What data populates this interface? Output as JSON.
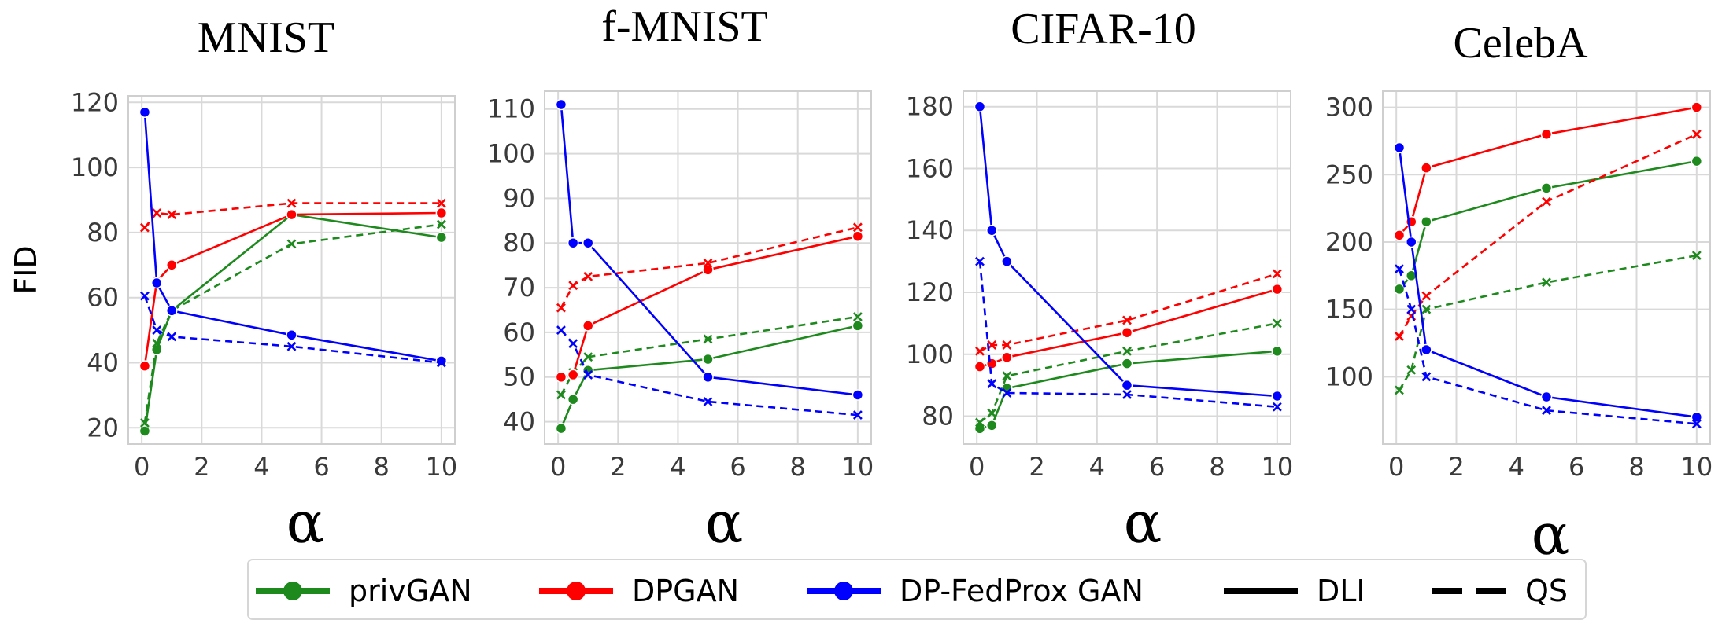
{
  "legend": {
    "items": [
      {
        "label": "privGAN",
        "kind": "color",
        "color": "#1e8a1e"
      },
      {
        "label": "DPGAN",
        "kind": "color",
        "color": "#ff0000"
      },
      {
        "label": "DP-FedProx GAN",
        "kind": "color",
        "color": "#0000ff"
      },
      {
        "label": "DLI",
        "kind": "style",
        "color": "#000000",
        "dashed": false
      },
      {
        "label": "QS",
        "kind": "style",
        "color": "#000000",
        "dashed": true
      }
    ]
  },
  "chart_data": [
    {
      "type": "line",
      "title": "MNIST",
      "xlabel": "α",
      "ylabel": "FID",
      "xlim": [
        -0.45,
        10.45
      ],
      "ylim": [
        15,
        122
      ],
      "xticks": [
        0,
        2,
        4,
        6,
        8,
        10
      ],
      "yticks": [
        20,
        40,
        60,
        80,
        100,
        120
      ],
      "grid": true,
      "x": [
        0.1,
        0.5,
        1,
        5,
        10
      ],
      "series": [
        {
          "name": "privGAN",
          "method": "DLI",
          "color": "#1e8a1e",
          "dashed": false,
          "values": [
            19,
            44,
            56,
            85.5,
            78.5
          ]
        },
        {
          "name": "privGAN",
          "method": "QS",
          "color": "#1e8a1e",
          "dashed": true,
          "values": [
            21.5,
            46,
            56,
            76.5,
            82.5
          ]
        },
        {
          "name": "DPGAN",
          "method": "DLI",
          "color": "#ff0000",
          "dashed": false,
          "values": [
            39,
            65,
            70,
            85.5,
            86
          ]
        },
        {
          "name": "DPGAN",
          "method": "QS",
          "color": "#ff0000",
          "dashed": true,
          "values": [
            81.5,
            86,
            85.5,
            89,
            89
          ]
        },
        {
          "name": "DP-FedProx GAN",
          "method": "DLI",
          "color": "#0000ff",
          "dashed": false,
          "values": [
            117,
            64.5,
            56,
            48.5,
            40.5
          ]
        },
        {
          "name": "DP-FedProx GAN",
          "method": "QS",
          "color": "#0000ff",
          "dashed": true,
          "values": [
            60.5,
            50,
            48,
            45,
            40
          ]
        }
      ]
    },
    {
      "type": "line",
      "title": "f-MNIST",
      "xlabel": "α",
      "ylabel": "",
      "xlim": [
        -0.45,
        10.45
      ],
      "ylim": [
        35,
        114
      ],
      "xticks": [
        0,
        2,
        4,
        6,
        8,
        10
      ],
      "yticks": [
        40,
        50,
        60,
        70,
        80,
        90,
        100,
        110
      ],
      "grid": true,
      "x": [
        0.1,
        0.5,
        1,
        5,
        10
      ],
      "series": [
        {
          "name": "privGAN",
          "method": "DLI",
          "color": "#1e8a1e",
          "dashed": false,
          "values": [
            38.5,
            45,
            51.5,
            54,
            61.5
          ]
        },
        {
          "name": "privGAN",
          "method": "QS",
          "color": "#1e8a1e",
          "dashed": true,
          "values": [
            46,
            51,
            54.5,
            58.5,
            63.5
          ]
        },
        {
          "name": "DPGAN",
          "method": "DLI",
          "color": "#ff0000",
          "dashed": false,
          "values": [
            50,
            50.5,
            61.5,
            74,
            81.5
          ]
        },
        {
          "name": "DPGAN",
          "method": "QS",
          "color": "#ff0000",
          "dashed": true,
          "values": [
            65.5,
            70.5,
            72.5,
            75.5,
            83.5
          ]
        },
        {
          "name": "DP-FedProx GAN",
          "method": "DLI",
          "color": "#0000ff",
          "dashed": false,
          "values": [
            111,
            80,
            80,
            50,
            46
          ]
        },
        {
          "name": "DP-FedProx GAN",
          "method": "QS",
          "color": "#0000ff",
          "dashed": true,
          "values": [
            60.5,
            57.5,
            50.5,
            44.5,
            41.5
          ]
        }
      ]
    },
    {
      "type": "line",
      "title": "CIFAR-10",
      "xlabel": "α",
      "ylabel": "",
      "xlim": [
        -0.45,
        10.45
      ],
      "ylim": [
        71,
        185
      ],
      "xticks": [
        0,
        2,
        4,
        6,
        8,
        10
      ],
      "yticks": [
        80,
        100,
        120,
        140,
        160,
        180
      ],
      "grid": true,
      "x": [
        0.1,
        0.5,
        1,
        5,
        10
      ],
      "series": [
        {
          "name": "privGAN",
          "method": "DLI",
          "color": "#1e8a1e",
          "dashed": false,
          "values": [
            76,
            77,
            89,
            97,
            101
          ]
        },
        {
          "name": "privGAN",
          "method": "QS",
          "color": "#1e8a1e",
          "dashed": true,
          "values": [
            78,
            81,
            93,
            101,
            110
          ]
        },
        {
          "name": "DPGAN",
          "method": "DLI",
          "color": "#ff0000",
          "dashed": false,
          "values": [
            96,
            97,
            99,
            107,
            121
          ]
        },
        {
          "name": "DPGAN",
          "method": "QS",
          "color": "#ff0000",
          "dashed": true,
          "values": [
            101,
            103,
            103,
            111,
            126
          ]
        },
        {
          "name": "DP-FedProx GAN",
          "method": "DLI",
          "color": "#0000ff",
          "dashed": false,
          "values": [
            180,
            140,
            130,
            90,
            86.5
          ]
        },
        {
          "name": "DP-FedProx GAN",
          "method": "QS",
          "color": "#0000ff",
          "dashed": true,
          "values": [
            130,
            90.5,
            87.5,
            87,
            83
          ]
        }
      ]
    },
    {
      "type": "line",
      "title": "CelebA",
      "xlabel": "α",
      "ylabel": "",
      "xlim": [
        -0.45,
        10.45
      ],
      "ylim": [
        50,
        312
      ],
      "xticks": [
        0,
        2,
        4,
        6,
        8,
        10
      ],
      "yticks": [
        100,
        150,
        200,
        250,
        300
      ],
      "grid": true,
      "x": [
        0.1,
        0.5,
        1,
        5,
        10
      ],
      "series": [
        {
          "name": "privGAN",
          "method": "DLI",
          "color": "#1e8a1e",
          "dashed": false,
          "values": [
            165,
            175,
            215,
            240,
            260
          ]
        },
        {
          "name": "privGAN",
          "method": "QS",
          "color": "#1e8a1e",
          "dashed": true,
          "values": [
            90,
            105,
            150,
            170,
            190
          ]
        },
        {
          "name": "DPGAN",
          "method": "DLI",
          "color": "#ff0000",
          "dashed": false,
          "values": [
            205,
            215,
            255,
            280,
            300
          ]
        },
        {
          "name": "DPGAN",
          "method": "QS",
          "color": "#ff0000",
          "dashed": true,
          "values": [
            130,
            145,
            160,
            230,
            280
          ]
        },
        {
          "name": "DP-FedProx GAN",
          "method": "DLI",
          "color": "#0000ff",
          "dashed": false,
          "values": [
            270,
            200,
            120,
            85,
            70
          ]
        },
        {
          "name": "DP-FedProx GAN",
          "method": "QS",
          "color": "#0000ff",
          "dashed": true,
          "values": [
            180,
            150,
            100,
            75,
            65
          ]
        }
      ]
    }
  ]
}
